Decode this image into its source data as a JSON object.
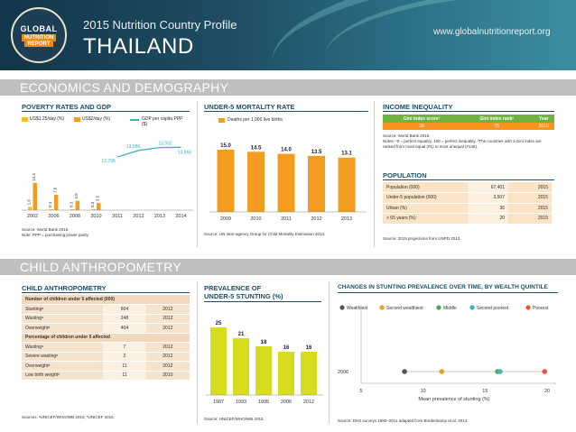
{
  "header": {
    "logo": {
      "line1": "GLOBAL",
      "line2": "NUTRITION",
      "line3": "REPORT"
    },
    "profile_title": "2015 Nutrition Country Profile",
    "country": "THAILAND",
    "url": "www.globalnutritionreport.org"
  },
  "sections": {
    "economics": "ECONOMICS AND DEMOGRAPHY",
    "child": "CHILD ANTHROPOMETRY"
  },
  "poverty": {
    "title": "POVERTY RATES AND GDP",
    "legend_1": "US$1.25/day (%)",
    "legend_2": "US$2/day (%)",
    "legend_3": "GDP per capita PPP ($)",
    "source": "Source: World Bank 2015.",
    "note": "Note: PPP = purchasing power parity."
  },
  "mortality": {
    "title": "UNDER-5 MORTALITY RATE",
    "legend": "Deaths per 1,000 live births",
    "source": "Source: UN Inter-agency Group for Child Mortality Estimation 2014."
  },
  "income": {
    "title": "INCOME INEQUALITY",
    "headers": [
      "Gini index score¹",
      "Gini index rank²",
      "Year"
    ],
    "values": [
      "39",
      "75",
      "2010"
    ],
    "source": "Source: World Bank 2015.",
    "notes": "Notes: ¹0 = perfect equality, 100 = perfect inequality. ²The countries with a Gini index are ranked from most equal (#1) to most unequal (#145)."
  },
  "population": {
    "title": "POPULATION",
    "rows": [
      {
        "label": "Population (000)",
        "value": "67,401",
        "year": "2015"
      },
      {
        "label": "Under-5 population (000)",
        "value": "3,507",
        "year": "2015"
      },
      {
        "label": "Urban (%)",
        "value": "36",
        "year": "2015"
      },
      {
        "label": "> 65 years (%)",
        "value": "20",
        "year": "2015"
      }
    ],
    "source": "Source: 2015 projections from UNPD 2013."
  },
  "child_table": {
    "title": "CHILD ANTHROPOMETRY",
    "sub1": "Number of children under 5 affected (000)",
    "rows1": [
      {
        "label": "Stuntingᵃ",
        "value": "604",
        "year": "2012"
      },
      {
        "label": "Wastingᵃ",
        "value": "248",
        "year": "2012"
      },
      {
        "label": "Overweightᵃ",
        "value": "404",
        "year": "2012"
      }
    ],
    "sub2": "Percentage of children under 5 affected",
    "rows2": [
      {
        "label": "Wastingᵃ",
        "value": "7",
        "year": "2012"
      },
      {
        "label": "Severe wastingᵃ",
        "value": "2",
        "year": "2012"
      },
      {
        "label": "Overweightᵃ",
        "value": "11",
        "year": "2012"
      },
      {
        "label": "Low birth weightᵇ",
        "value": "11",
        "year": "2010"
      }
    ],
    "source": "Sources: ᵃUNICEF/WHO/WB 2015; ᵇUNICEF 2015."
  },
  "stunting": {
    "title_1": "PREVALENCE OF",
    "title_2": "UNDER-5 STUNTING (%)",
    "source": "Source: UNICEF/WHO/WB 2015."
  },
  "quintile": {
    "title": "CHANGES IN STUNTING PREVALENCE OVER TIME, BY WEALTH QUINTILE",
    "source": "Source: DHS surveys 1990–2011 adapted from Bredenkamp et al. 2014."
  },
  "colors": {
    "orange": "#f39c1f",
    "gold": "#f0c419",
    "teal": "#3bb3c3",
    "lime": "#d8dc1f",
    "header_dark": "#1e4d63"
  },
  "chart_data": [
    {
      "type": "bar",
      "title": "POVERTY RATES AND GDP",
      "categories": [
        "2002",
        "2006",
        "2008",
        "2010",
        "2011",
        "2012",
        "2013",
        "2014"
      ],
      "series": [
        {
          "name": "US$1.25/day (%)",
          "values": [
            1.6,
            0.4,
            0.3,
            0.3,
            null,
            null,
            null,
            null
          ]
        },
        {
          "name": "US$2/day (%)",
          "values": [
            13.4,
            7.6,
            4.6,
            3.5,
            null,
            null,
            null,
            null
          ]
        },
        {
          "name": "GDP per capita PPP ($)",
          "type": "line",
          "x": [
            "2011",
            "2012",
            "2013",
            "2014"
          ],
          "values": [
            12798,
            13586,
            13932,
            13966
          ]
        }
      ],
      "bar_labels": [
        "1.6",
        "13.4",
        "0.4",
        "7.6",
        "0.3",
        "4.6",
        "0.3",
        "3.5"
      ]
    },
    {
      "type": "bar",
      "title": "UNDER-5 MORTALITY RATE",
      "categories": [
        "2009",
        "2010",
        "2011",
        "2012",
        "2013"
      ],
      "values": [
        15.0,
        14.5,
        14.0,
        13.5,
        13.1
      ],
      "labels": [
        "15.0",
        "14.5",
        "14.0",
        "13.5",
        "13.1"
      ],
      "ylabel": "Deaths per 1,000 live births",
      "ylim": [
        0,
        18
      ]
    },
    {
      "type": "bar",
      "title": "PREVALENCE OF UNDER-5 STUNTING (%)",
      "categories": [
        "1987",
        "1993",
        "1995",
        "2006",
        "2012"
      ],
      "values": [
        25,
        21,
        18,
        16,
        16
      ],
      "labels": [
        "25",
        "21",
        "18",
        "16",
        "16"
      ],
      "ylim": [
        0,
        30
      ]
    },
    {
      "type": "scatter",
      "title": "CHANGES IN STUNTING PREVALENCE OVER TIME, BY WEALTH QUINTILE",
      "xlabel": "Mean prevalence of stunting (%)",
      "xlim": [
        5,
        20
      ],
      "xticks": [
        "5",
        "10",
        "15",
        "20"
      ],
      "y_categories": [
        "2006"
      ],
      "series": [
        {
          "name": "Wealthiest",
          "color": "#555555",
          "x": [
            8.5
          ]
        },
        {
          "name": "Second wealthiest",
          "color": "#f39c1f",
          "x": [
            11.5
          ]
        },
        {
          "name": "Middle",
          "color": "#4aa84a",
          "x": [
            16.0
          ]
        },
        {
          "name": "Second poorest",
          "color": "#3bb3c3",
          "x": [
            16.2
          ]
        },
        {
          "name": "Poorest",
          "color": "#e8563a",
          "x": [
            19.8
          ]
        }
      ]
    }
  ]
}
